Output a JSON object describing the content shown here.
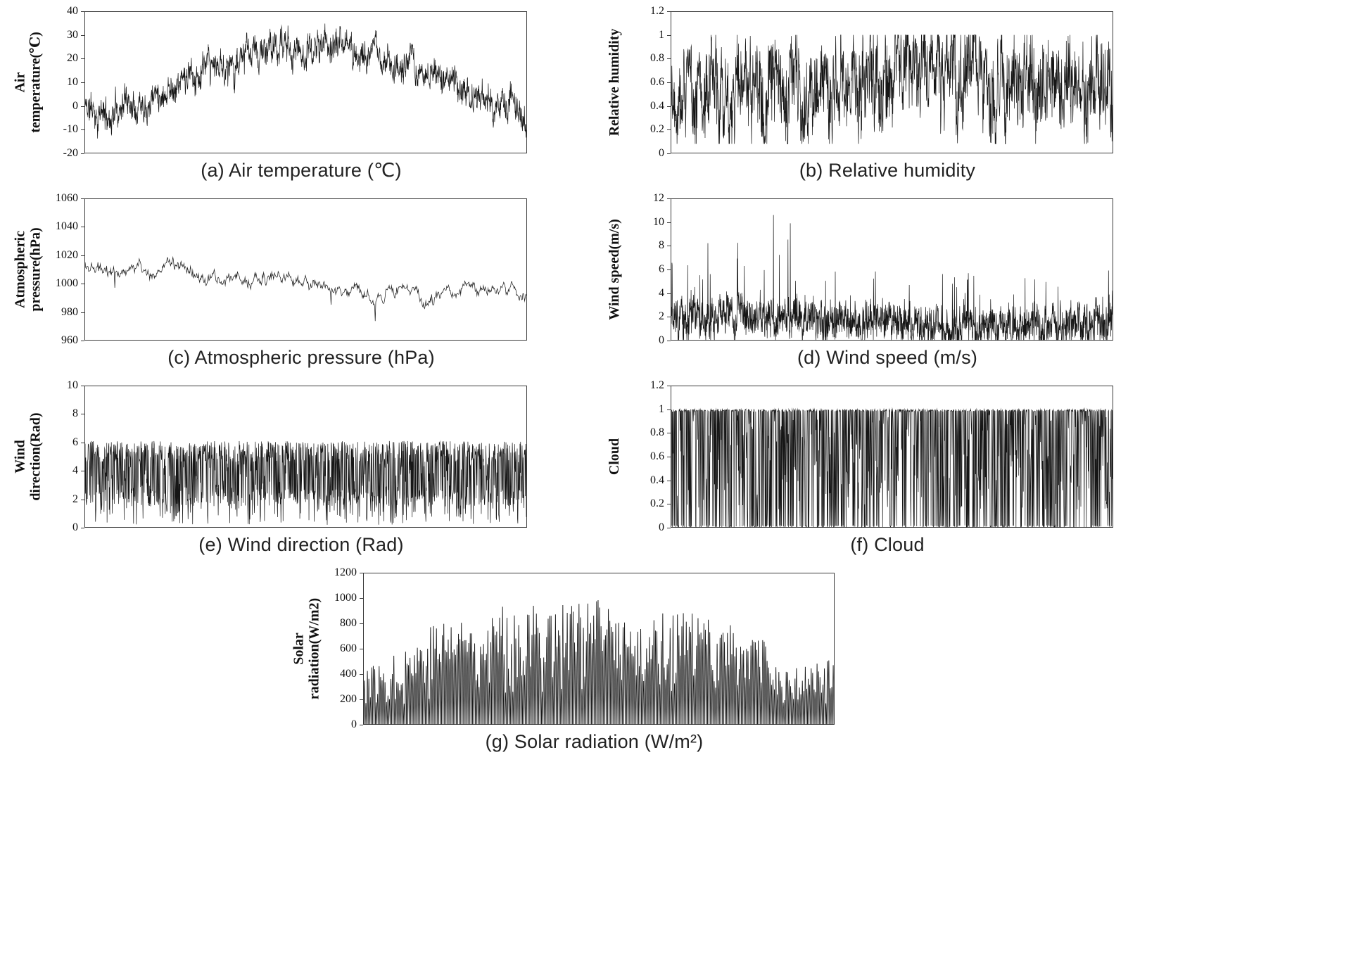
{
  "chart_data": [
    {
      "id": "air-temperature",
      "type": "line",
      "caption": "(a) Air temperature (℃)",
      "ylabel": "Air\ntemperature(℃)",
      "ylim": [
        -20,
        40
      ],
      "yticks": [
        -20,
        -10,
        0,
        10,
        20,
        30,
        40
      ],
      "legend": "none",
      "grid": "off",
      "gen": {
        "kind": "trend-noise",
        "n": 1600,
        "seed": 11,
        "trend": [
          [
            0,
            0
          ],
          [
            0.03,
            -3
          ],
          [
            0.055,
            -5
          ],
          [
            0.08,
            2
          ],
          [
            0.12,
            4
          ],
          [
            0.18,
            8
          ],
          [
            0.25,
            12
          ],
          [
            0.32,
            17
          ],
          [
            0.4,
            22
          ],
          [
            0.45,
            25
          ],
          [
            0.5,
            23
          ],
          [
            0.55,
            26
          ],
          [
            0.6,
            24
          ],
          [
            0.65,
            21
          ],
          [
            0.72,
            17
          ],
          [
            0.78,
            13
          ],
          [
            0.84,
            9
          ],
          [
            0.9,
            4
          ],
          [
            0.94,
            0
          ],
          [
            0.97,
            -3
          ],
          [
            1,
            -6
          ]
        ],
        "jitter": 4.2,
        "walkStep": 3.0,
        "walkDecay": 0.88,
        "clamp": [
          -15,
          35
        ]
      }
    },
    {
      "id": "relative-humidity",
      "type": "line",
      "caption": "(b) Relative humidity",
      "ylabel": "Relative humidity",
      "ylim": [
        0,
        1.2
      ],
      "yticks": [
        0,
        0.2,
        0.4,
        0.6,
        0.8,
        1,
        1.2
      ],
      "legend": "none",
      "grid": "off",
      "gen": {
        "kind": "trend-noise",
        "n": 1700,
        "seed": 22,
        "trend": [
          [
            0,
            0.62
          ],
          [
            0.08,
            0.55
          ],
          [
            0.18,
            0.5
          ],
          [
            0.28,
            0.5
          ],
          [
            0.38,
            0.55
          ],
          [
            0.48,
            0.6
          ],
          [
            0.56,
            0.8
          ],
          [
            0.62,
            0.74
          ],
          [
            0.7,
            0.62
          ],
          [
            0.8,
            0.56
          ],
          [
            0.9,
            0.55
          ],
          [
            1,
            0.62
          ]
        ],
        "jitter": 0.27,
        "walkStep": 0.17,
        "walkDecay": 0.8,
        "clamp": [
          0.08,
          1.0
        ]
      }
    },
    {
      "id": "atmospheric-pressure",
      "type": "line",
      "caption": "(c) Atmospheric pressure (hPa)",
      "ylabel": "Atmospheric\npressure(hPa)",
      "ylim": [
        960,
        1060
      ],
      "yticks": [
        960,
        980,
        1000,
        1020,
        1040,
        1060
      ],
      "legend": "none",
      "grid": "off",
      "gen": {
        "kind": "trend-noise",
        "n": 760,
        "seed": 33,
        "trend": [
          [
            0,
            1014
          ],
          [
            0.03,
            1008
          ],
          [
            0.05,
            1001
          ],
          [
            0.08,
            1006
          ],
          [
            0.12,
            1009
          ],
          [
            0.17,
            1005
          ],
          [
            0.21,
            1013
          ],
          [
            0.26,
            1007
          ],
          [
            0.31,
            1003
          ],
          [
            0.36,
            1000
          ],
          [
            0.42,
            1003
          ],
          [
            0.48,
            998
          ],
          [
            0.54,
            997
          ],
          [
            0.6,
            994
          ],
          [
            0.66,
            992
          ],
          [
            0.72,
            995
          ],
          [
            0.77,
            990
          ],
          [
            0.82,
            993
          ],
          [
            0.87,
            996
          ],
          [
            0.92,
            994
          ],
          [
            0.96,
            997
          ],
          [
            1,
            991
          ]
        ],
        "jitter": 1.6,
        "walkStep": 2.6,
        "walkDecay": 0.88,
        "clamp": [
          970,
          1022
        ],
        "dips": {
          "prob": 0.006,
          "depth": 11
        }
      }
    },
    {
      "id": "wind-speed",
      "type": "line",
      "caption": "(d) Wind speed (m/s)",
      "ylabel": "Wind speed(m/s)",
      "ylim": [
        0,
        12
      ],
      "yticks": [
        0,
        2,
        4,
        6,
        8,
        10,
        12
      ],
      "legend": "none",
      "grid": "off",
      "gen": {
        "kind": "trend-noise",
        "n": 2100,
        "seed": 44,
        "trend": [
          [
            0,
            1.7
          ],
          [
            0.1,
            1.9
          ],
          [
            0.2,
            2.1
          ],
          [
            0.3,
            1.9
          ],
          [
            0.45,
            1.5
          ],
          [
            0.6,
            1.2
          ],
          [
            0.75,
            1.3
          ],
          [
            0.9,
            1.2
          ],
          [
            1,
            1.7
          ]
        ],
        "jitter": 1.15,
        "walkStep": 0.75,
        "walkDecay": 0.75,
        "clamp": [
          0,
          10.6
        ],
        "spikes": {
          "prob": 0.022,
          "ampTrend": [
            [
              0,
              3.5
            ],
            [
              0.1,
              5
            ],
            [
              0.18,
              6.5
            ],
            [
              0.27,
              6.8
            ],
            [
              0.35,
              5
            ],
            [
              0.5,
              3
            ],
            [
              0.62,
              3
            ],
            [
              0.72,
              5.2
            ],
            [
              0.82,
              3.2
            ],
            [
              0.92,
              3.5
            ],
            [
              1,
              4.8
            ]
          ]
        }
      }
    },
    {
      "id": "wind-direction",
      "type": "line",
      "caption": "(e) Wind direction (Rad)",
      "ylabel": "Wind\ndirection(Rad)",
      "ylim": [
        0,
        10
      ],
      "yticks": [
        0,
        2,
        4,
        6,
        8,
        10
      ],
      "legend": "none",
      "grid": "off",
      "gen": {
        "kind": "jumpy",
        "n": 1450,
        "seed": 55,
        "levels": [
          {
            "p": 0.48,
            "min": 4.6,
            "max": 6.1
          },
          {
            "p": 0.3,
            "min": 1.5,
            "max": 2.7
          },
          {
            "p": 0.1,
            "min": 0.2,
            "max": 1.4
          },
          {
            "p": 0.12,
            "min": 2.7,
            "max": 4.6
          }
        ]
      }
    },
    {
      "id": "cloud",
      "type": "line",
      "caption": "(f) Cloud",
      "ylabel": "Cloud",
      "ylim": [
        0,
        1.2
      ],
      "yticks": [
        0,
        0.2,
        0.4,
        0.6,
        0.8,
        1,
        1.2
      ],
      "legend": "none",
      "grid": "off",
      "gen": {
        "kind": "jumpy",
        "n": 1450,
        "seed": 66,
        "levels": [
          {
            "p": 0.46,
            "min": 0.98,
            "max": 1.0
          },
          {
            "p": 0.28,
            "min": 0.0,
            "max": 0.02
          },
          {
            "p": 0.26,
            "min": 0.15,
            "max": 0.95
          }
        ]
      }
    },
    {
      "id": "solar-radiation",
      "type": "line",
      "caption": "(g) Solar radiation (W/m²)",
      "ylabel": "Solar\nradiation(W/m2)",
      "ylim": [
        0,
        1200
      ],
      "yticks": [
        0,
        200,
        400,
        600,
        800,
        1000,
        1200
      ],
      "legend": "none",
      "grid": "off",
      "gen": {
        "kind": "daily-spikes",
        "seed": 77,
        "days": 320,
        "samplesPerDay": 8,
        "power": 1.3,
        "minFactor": 0.22,
        "envelope": [
          [
            0,
            520
          ],
          [
            0.04,
            490
          ],
          [
            0.09,
            660
          ],
          [
            0.16,
            880
          ],
          [
            0.24,
            940
          ],
          [
            0.33,
            980
          ],
          [
            0.42,
            1010
          ],
          [
            0.5,
            1020
          ],
          [
            0.55,
            950
          ],
          [
            0.58,
            760
          ],
          [
            0.62,
            950
          ],
          [
            0.68,
            920
          ],
          [
            0.74,
            880
          ],
          [
            0.8,
            840
          ],
          [
            0.85,
            700
          ],
          [
            0.89,
            430
          ],
          [
            0.93,
            480
          ],
          [
            1,
            540
          ]
        ]
      }
    }
  ],
  "style": {
    "line_color": "#161616",
    "axis_color": "#3a3a3a"
  }
}
